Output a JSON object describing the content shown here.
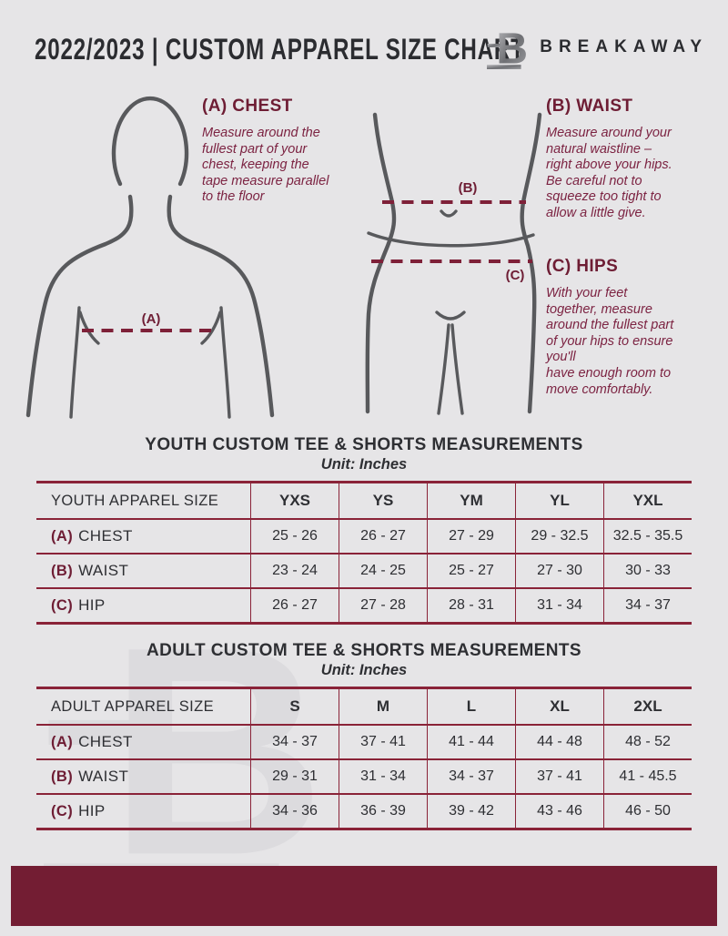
{
  "header": {
    "title": "2022/2023  |  CUSTOM APPAREL SIZE CHART",
    "brand": "BREAKAWAY",
    "logo_letter": "B"
  },
  "instructions": {
    "chest": {
      "heading": "(A) CHEST",
      "body": "Measure around the\nfullest part of your\nchest, keeping the\ntape measure parallel\nto the floor"
    },
    "waist": {
      "heading": "(B) WAIST",
      "body": "Measure around your\nnatural waistline –\nright above your hips.\nBe careful not to\nsqueeze too tight to\nallow a little give."
    },
    "hips": {
      "heading": "(C) HIPS",
      "body": "With your feet\ntogether, measure\naround the fullest part\nof your hips to ensure\nyou'll\nhave enough room to\nmove comfortably."
    }
  },
  "figures": {
    "chest_label": "(A)",
    "waist_label": "(B)",
    "hips_label": "(C)"
  },
  "youth_table": {
    "title": "YOUTH CUSTOM TEE & SHORTS MEASUREMENTS",
    "unit": "Unit: Inches",
    "header": [
      "YOUTH APPAREL SIZE",
      "YXS",
      "YS",
      "YM",
      "YL",
      "YXL"
    ],
    "rows": [
      {
        "prefix": "(A)",
        "label": "CHEST",
        "values": [
          "25 - 26",
          "26 - 27",
          "27 - 29",
          "29 - 32.5",
          "32.5 - 35.5"
        ]
      },
      {
        "prefix": "(B)",
        "label": "WAIST",
        "values": [
          "23 - 24",
          "24 - 25",
          "25 - 27",
          "27 - 30",
          "30 - 33"
        ]
      },
      {
        "prefix": "(C)",
        "label": "HIP",
        "values": [
          "26 - 27",
          "27 - 28",
          "28 - 31",
          "31 - 34",
          "34 - 37"
        ]
      }
    ]
  },
  "adult_table": {
    "title": "ADULT CUSTOM TEE & SHORTS MEASUREMENTS",
    "unit": "Unit: Inches",
    "header": [
      "ADULT APPAREL SIZE",
      "S",
      "M",
      "L",
      "XL",
      "2XL"
    ],
    "rows": [
      {
        "prefix": "(A)",
        "label": "CHEST",
        "values": [
          "34 - 37",
          "37 - 41",
          "41 - 44",
          "44 - 48",
          "48 - 52"
        ]
      },
      {
        "prefix": "(B)",
        "label": "WAIST",
        "values": [
          "29 - 31",
          "31 - 34",
          "34 - 37",
          "37 - 41",
          "41 - 45.5"
        ]
      },
      {
        "prefix": "(C)",
        "label": "HIP",
        "values": [
          "34 - 36",
          "36 - 39",
          "39 - 42",
          "43 - 46",
          "46 - 50"
        ]
      }
    ]
  },
  "colors": {
    "maroon_bar": "#731d33",
    "maroon_line": "#8a2338",
    "maroon_text": "#6e1d34",
    "background": "#e6e5e7",
    "dark_text": "#2e2f33",
    "figure_gray": "#58595c"
  }
}
